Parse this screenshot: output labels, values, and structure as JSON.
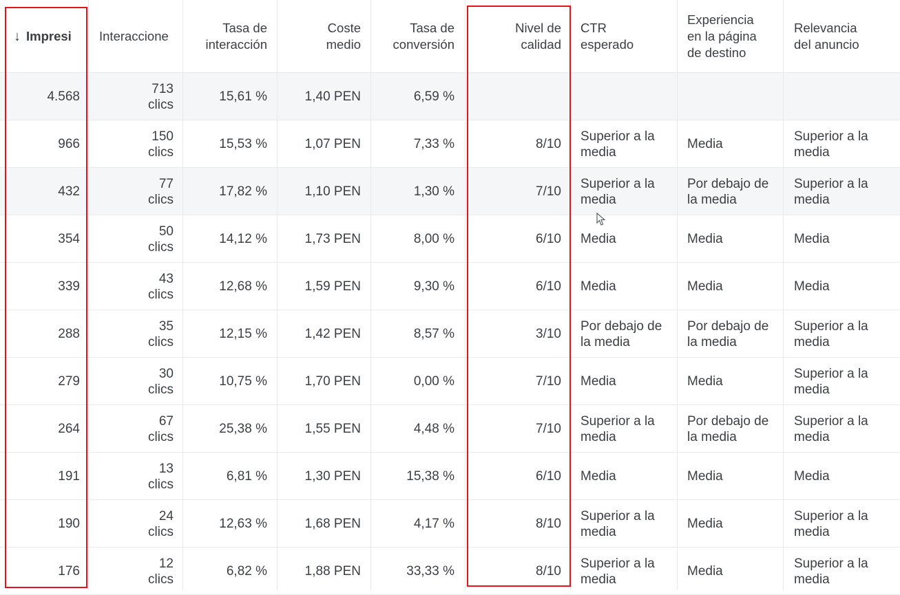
{
  "columns": {
    "impressions": "Impresi",
    "interactions": "Interaccione",
    "interaction_rate": [
      "Tasa de",
      "interacción"
    ],
    "avg_cost": [
      "Coste",
      "medio"
    ],
    "conversion_rate": [
      "Tasa de",
      "conversión"
    ],
    "quality_score": [
      "Nivel de",
      "calidad"
    ],
    "expected_ctr": [
      "CTR",
      "esperado"
    ],
    "landing_page_experience": [
      "Experiencia",
      "en la página",
      "de destino"
    ],
    "ad_relevance": [
      "Relevancia",
      "del anuncio"
    ]
  },
  "rows": [
    {
      "impressions": "4.568",
      "interactions": [
        "713",
        "clics"
      ],
      "interaction_rate": "15,61 %",
      "avg_cost": "1,40 PEN",
      "conversion_rate": "6,59 %",
      "quality_score": "",
      "expected_ctr": [],
      "landing_page": [],
      "ad_relevance": []
    },
    {
      "impressions": "966",
      "interactions": [
        "150",
        "clics"
      ],
      "interaction_rate": "15,53 %",
      "avg_cost": "1,07 PEN",
      "conversion_rate": "7,33 %",
      "quality_score": "8/10",
      "expected_ctr": [
        "Superior a la",
        "media"
      ],
      "landing_page": [
        "Media"
      ],
      "ad_relevance": [
        "Superior a la",
        "media"
      ]
    },
    {
      "impressions": "432",
      "interactions": [
        "77",
        "clics"
      ],
      "interaction_rate": "17,82 %",
      "avg_cost": "1,10 PEN",
      "conversion_rate": "1,30 %",
      "quality_score": "7/10",
      "expected_ctr": [
        "Superior a la",
        "media"
      ],
      "landing_page": [
        "Por debajo de",
        "la media"
      ],
      "ad_relevance": [
        "Superior a la",
        "media"
      ]
    },
    {
      "impressions": "354",
      "interactions": [
        "50",
        "clics"
      ],
      "interaction_rate": "14,12 %",
      "avg_cost": "1,73 PEN",
      "conversion_rate": "8,00 %",
      "quality_score": "6/10",
      "expected_ctr": [
        "Media"
      ],
      "landing_page": [
        "Media"
      ],
      "ad_relevance": [
        "Media"
      ]
    },
    {
      "impressions": "339",
      "interactions": [
        "43",
        "clics"
      ],
      "interaction_rate": "12,68 %",
      "avg_cost": "1,59 PEN",
      "conversion_rate": "9,30 %",
      "quality_score": "6/10",
      "expected_ctr": [
        "Media"
      ],
      "landing_page": [
        "Media"
      ],
      "ad_relevance": [
        "Media"
      ]
    },
    {
      "impressions": "288",
      "interactions": [
        "35",
        "clics"
      ],
      "interaction_rate": "12,15 %",
      "avg_cost": "1,42 PEN",
      "conversion_rate": "8,57 %",
      "quality_score": "3/10",
      "expected_ctr": [
        "Por debajo de",
        "la media"
      ],
      "landing_page": [
        "Por debajo de",
        "la media"
      ],
      "ad_relevance": [
        "Superior a la",
        "media"
      ]
    },
    {
      "impressions": "279",
      "interactions": [
        "30",
        "clics"
      ],
      "interaction_rate": "10,75 %",
      "avg_cost": "1,70 PEN",
      "conversion_rate": "0,00 %",
      "quality_score": "7/10",
      "expected_ctr": [
        "Media"
      ],
      "landing_page": [
        "Media"
      ],
      "ad_relevance": [
        "Superior a la",
        "media"
      ]
    },
    {
      "impressions": "264",
      "interactions": [
        "67",
        "clics"
      ],
      "interaction_rate": "25,38 %",
      "avg_cost": "1,55 PEN",
      "conversion_rate": "4,48 %",
      "quality_score": "7/10",
      "expected_ctr": [
        "Superior a la",
        "media"
      ],
      "landing_page": [
        "Por debajo de",
        "la media"
      ],
      "ad_relevance": [
        "Superior a la",
        "media"
      ]
    },
    {
      "impressions": "191",
      "interactions": [
        "13",
        "clics"
      ],
      "interaction_rate": "6,81 %",
      "avg_cost": "1,30 PEN",
      "conversion_rate": "15,38 %",
      "quality_score": "6/10",
      "expected_ctr": [
        "Media"
      ],
      "landing_page": [
        "Media"
      ],
      "ad_relevance": [
        "Media"
      ]
    },
    {
      "impressions": "190",
      "interactions": [
        "24",
        "clics"
      ],
      "interaction_rate": "12,63 %",
      "avg_cost": "1,68 PEN",
      "conversion_rate": "4,17 %",
      "quality_score": "8/10",
      "expected_ctr": [
        "Superior a la",
        "media"
      ],
      "landing_page": [
        "Media"
      ],
      "ad_relevance": [
        "Superior a la",
        "media"
      ]
    },
    {
      "impressions": "176",
      "interactions": [
        "12",
        "clics"
      ],
      "interaction_rate": "6,82 %",
      "avg_cost": "1,88 PEN",
      "conversion_rate": "33,33 %",
      "quality_score": "8/10",
      "expected_ctr": [
        "Superior a la",
        "media"
      ],
      "landing_page": [
        "Media"
      ],
      "ad_relevance": [
        "Superior a la",
        "media"
      ]
    }
  ],
  "icons": {
    "sort": "arrow-down-icon",
    "cursor": "mouse-pointer-icon"
  },
  "colors": {
    "highlight_box": "#e3141c",
    "shaded_row": "#f5f6f7",
    "grid": "#e8eaed",
    "text": "#3c4043"
  }
}
